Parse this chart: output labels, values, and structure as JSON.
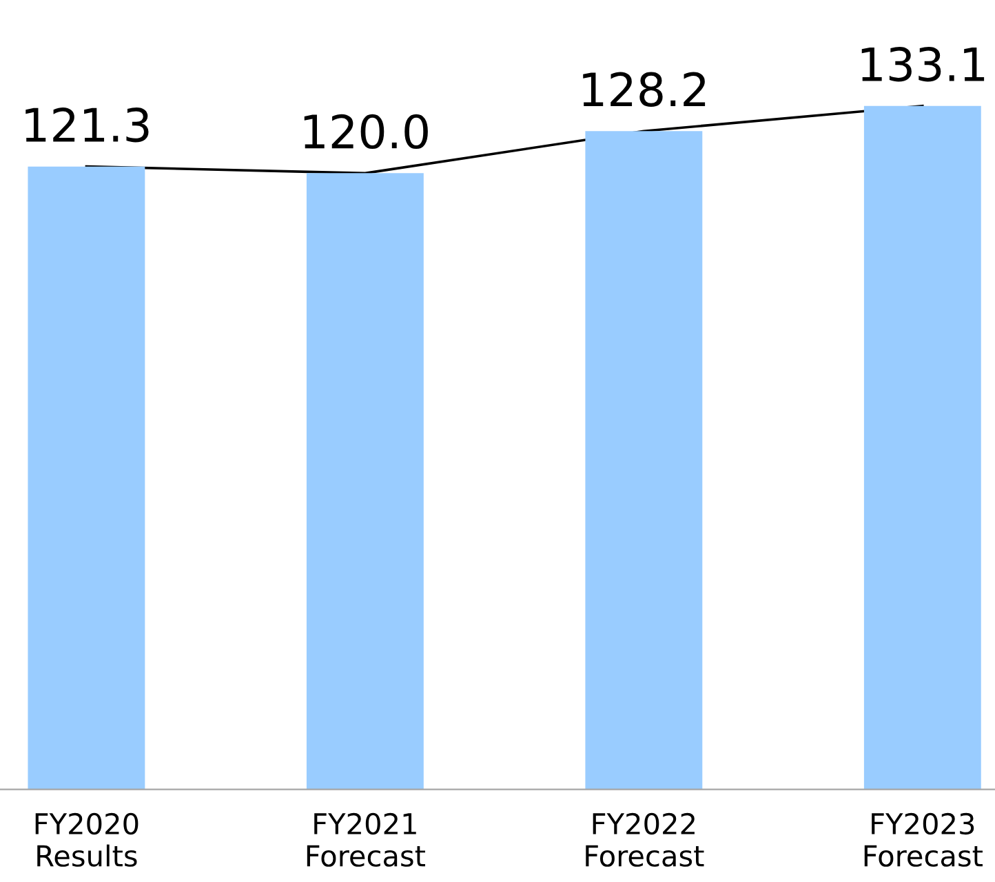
{
  "chart_data": {
    "type": "bar",
    "categories": [
      "FY2020\nResults",
      "FY2021\nForecast",
      "FY2022\nForecast",
      "FY2023\nForecast"
    ],
    "series": [
      {
        "color": "#99ccff",
        "values": [
          121.3,
          120.0,
          128.2,
          133.1
        ]
      },
      {
        "type": "line",
        "color": "#000000",
        "values": [
          121.3,
          120.0,
          128.2,
          133.1
        ],
        "value_labels": [
          "121.3",
          "120.0",
          "128.2",
          "133.1"
        ]
      }
    ],
    "grid": false,
    "legend": false
  }
}
